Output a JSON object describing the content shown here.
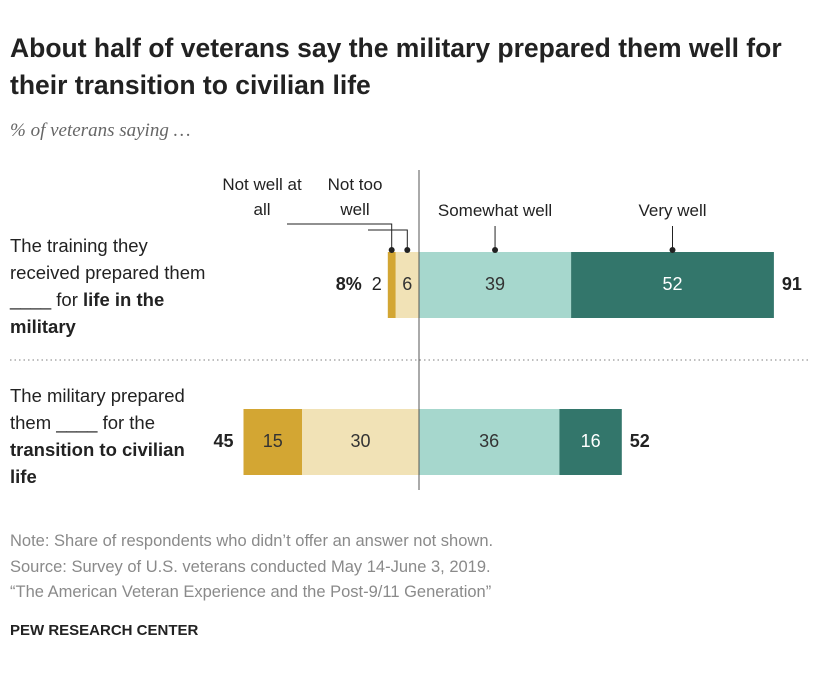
{
  "chart_data": {
    "type": "diverging-bar",
    "title": "About half of veterans say the military prepared them well for their transition to civilian life",
    "subtitle": "% of veterans saying …",
    "categories": [
      {
        "text": "The training they received prepared them ____ for",
        "bold": "life in the military"
      },
      {
        "text": "The military prepared them ____ for the",
        "bold": "transition to civilian life"
      }
    ],
    "series": [
      {
        "name": "Not well at all",
        "color": "#d3a633",
        "side": "negative",
        "values": [
          2,
          15
        ]
      },
      {
        "name": "Not too well",
        "color": "#f1e2b6",
        "side": "negative",
        "values": [
          6,
          30
        ]
      },
      {
        "name": "Somewhat well",
        "color": "#a6d7cd",
        "side": "positive",
        "values": [
          39,
          36
        ]
      },
      {
        "name": "Very well",
        "color": "#33766b",
        "side": "positive",
        "values": [
          52,
          16
        ]
      }
    ],
    "net_negative": {
      "values": [
        8,
        45
      ],
      "value_labels": [
        "8%",
        "45"
      ]
    },
    "net_positive": {
      "values": [
        91,
        52
      ]
    }
  },
  "notes": {
    "note": "Note: Share of respondents who didn’t offer an answer not shown.",
    "source": "Source: Survey of U.S. veterans conducted May 14-June 3, 2019.",
    "report": "“The American Veteran Experience and the Post-9/11 Generation”",
    "credit": "PEW RESEARCH CENTER"
  }
}
